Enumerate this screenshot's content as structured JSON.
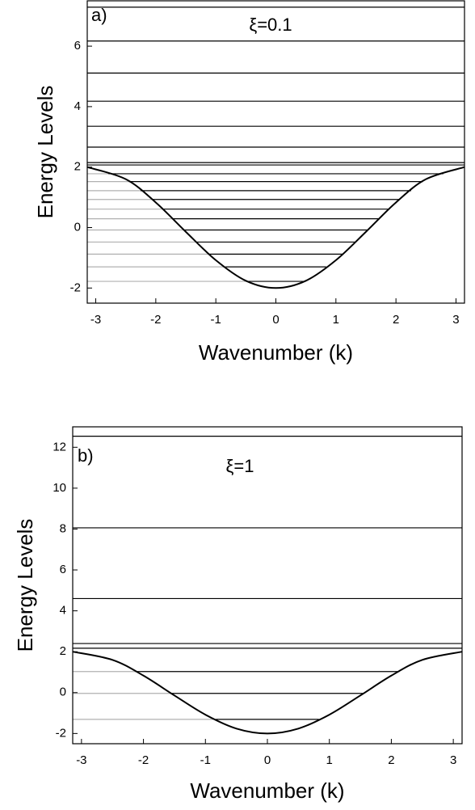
{
  "chart_data": [
    {
      "type": "line",
      "panel_label": "a)",
      "annotation": "ξ=0.1",
      "x_label": "Wavenumber (k)",
      "y_label": "Energy Levels",
      "x": [
        -3.1416,
        -2.5,
        -2,
        -1.5,
        -1,
        -0.5,
        0,
        0.5,
        1,
        1.5,
        2,
        2.5,
        3.1416
      ],
      "values": [
        2.0,
        1.6,
        0.83,
        -0.14,
        -1.08,
        -1.76,
        -2.0,
        -1.76,
        -1.08,
        -0.14,
        0.83,
        1.6,
        2.0
      ],
      "color": "#000000",
      "levels": [
        7.29,
        6.17,
        5.11,
        4.18,
        3.35,
        2.66,
        2.15,
        2.07,
        1.78,
        1.52,
        1.22,
        0.93,
        0.61,
        0.29,
        -0.08,
        -0.48,
        -0.88,
        -1.3,
        -1.78
      ],
      "level_color": "#000000",
      "outside_level_color": "#b0b0b0",
      "xlim": [
        -3.1416,
        3.1416
      ],
      "ylim": [
        -2.5,
        7.5
      ],
      "xticks": [
        -3,
        -2,
        -1,
        0,
        1,
        2,
        3
      ],
      "yticks": [
        -2,
        0,
        2,
        4,
        6
      ]
    },
    {
      "type": "line",
      "panel_label": "b)",
      "annotation": "ξ=1",
      "x_label": "Wavenumber (k)",
      "y_label": "Energy Levels",
      "x": [
        -3.1416,
        -2.5,
        -2,
        -1.5,
        -1,
        -0.5,
        0,
        0.5,
        1,
        1.5,
        2,
        2.5,
        3.1416
      ],
      "values": [
        2.0,
        1.6,
        0.83,
        -0.14,
        -1.08,
        -1.76,
        -2.0,
        -1.76,
        -1.08,
        -0.14,
        0.83,
        1.6,
        2.0
      ],
      "color": "#000000",
      "levels": [
        12.54,
        8.06,
        4.6,
        2.4,
        2.17,
        1.03,
        -0.04,
        -1.31
      ],
      "level_color": "#000000",
      "outside_level_color": "#b0b0b0",
      "xlim": [
        -3.1416,
        3.1416
      ],
      "ylim": [
        -2.5,
        13
      ],
      "xticks": [
        -3,
        -2,
        -1,
        0,
        1,
        2,
        3
      ],
      "yticks": [
        -2,
        0,
        2,
        4,
        6,
        8,
        10,
        12
      ]
    }
  ]
}
